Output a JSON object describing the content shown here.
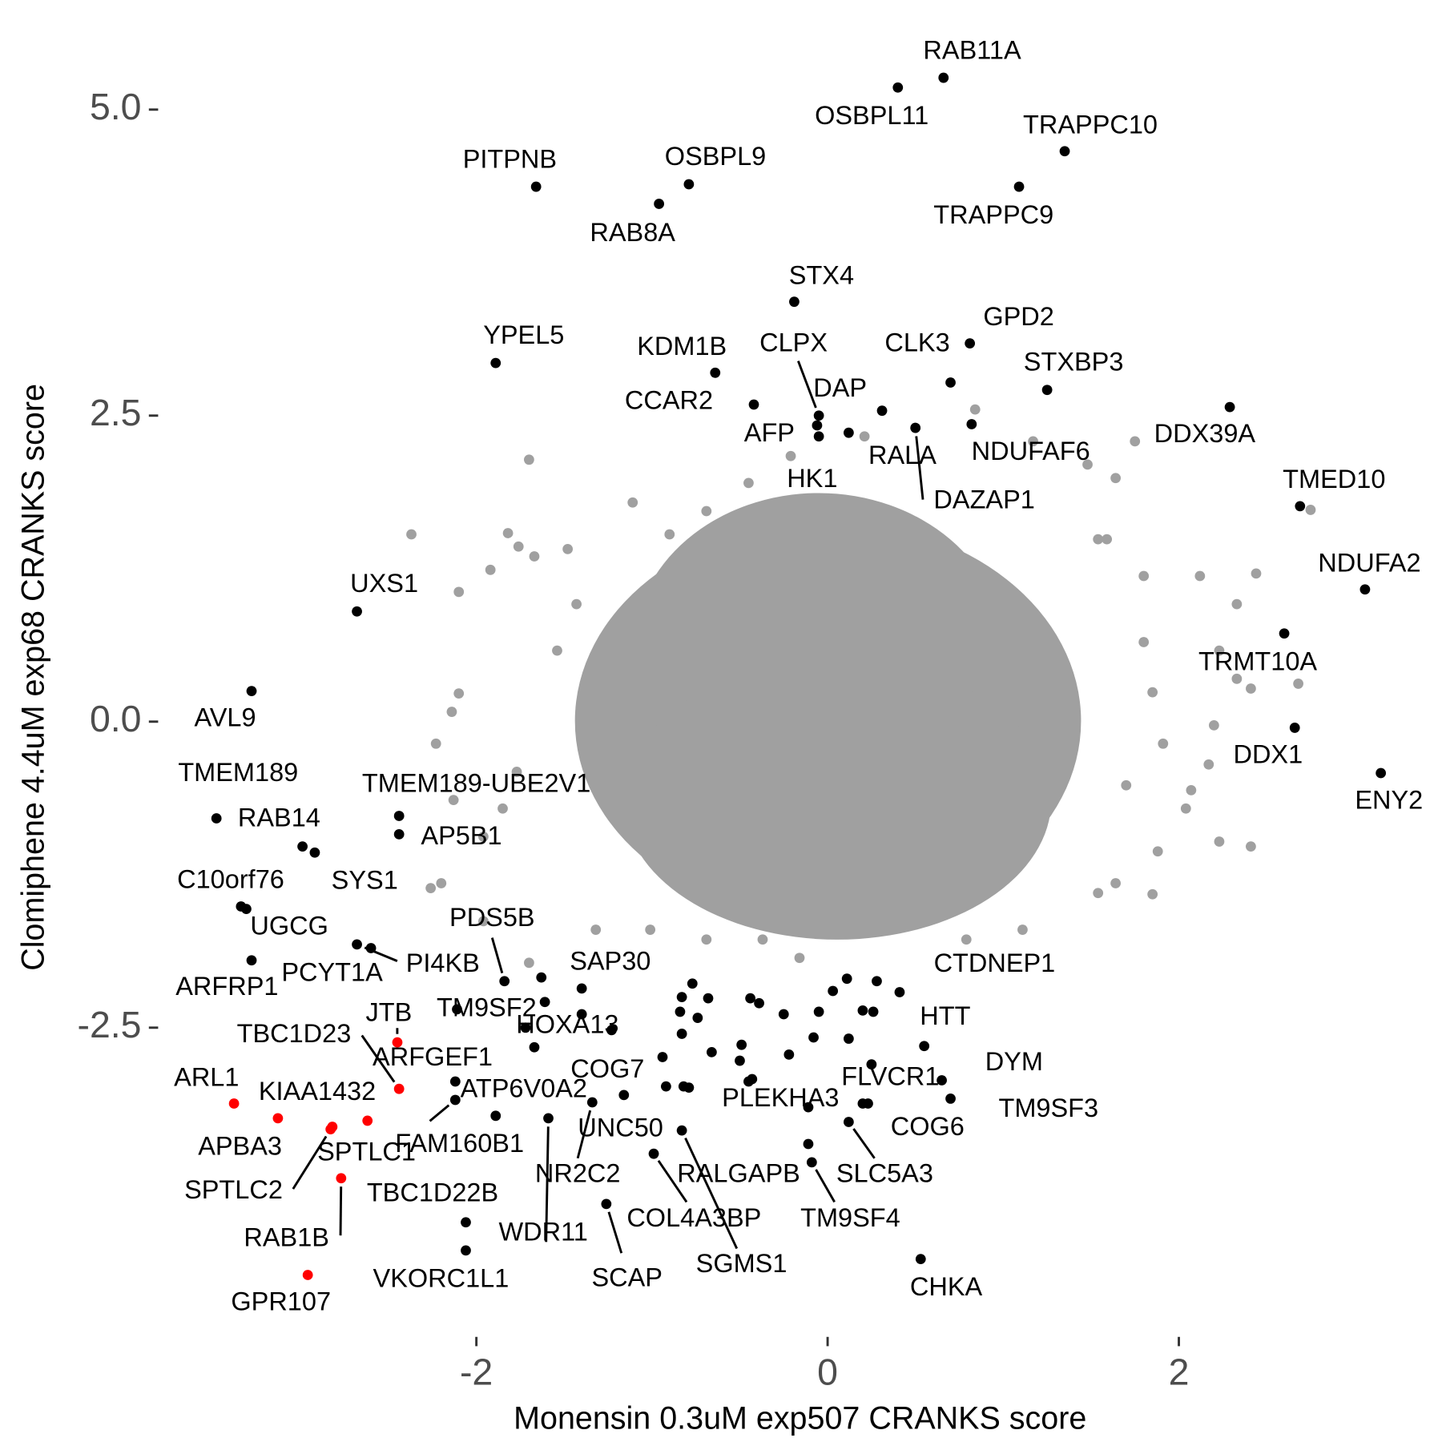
{
  "chart_data": {
    "type": "scatter",
    "xlabel": "Monensin 0.3uM exp507 CRANKS score",
    "ylabel": "Clomiphene 4.4uM exp68 CRANKS score",
    "xlim": [
      -3.6,
      3.35
    ],
    "ylim": [
      -4.95,
      5.5
    ],
    "xticks": [
      -2,
      0,
      2
    ],
    "yticks": [
      {
        "value": 5,
        "label": "5.0"
      },
      {
        "value": 2.5,
        "label": "2.5"
      },
      {
        "value": 0,
        "label": "0.0"
      },
      {
        "value": -2.5,
        "label": "-2.5"
      }
    ],
    "grid": false,
    "series": [
      {
        "color": "#a0a0a0",
        "x": [
          -1.7,
          -2.37,
          -1.82,
          -1.76,
          -1.67,
          -1.48,
          -2.1,
          -1.92,
          -2.1,
          -2.14,
          -2.23,
          -2.13,
          -2.2,
          -2.26,
          -1.96,
          -1.85,
          -1.77,
          -1.54,
          -1.43,
          -1.11,
          -0.9,
          -0.69,
          -0.45,
          -0.21,
          0.21,
          0.84,
          1.17,
          1.48,
          1.64,
          1.75,
          1.59,
          1.8,
          2.12,
          2.33,
          2.44,
          2.75,
          2.68,
          2.41,
          2.33,
          2.23,
          2.2,
          2.17,
          2.07,
          2.04,
          2.23,
          2.41,
          1.88,
          1.85,
          1.64,
          1.54,
          1.11,
          0.79,
          0.26,
          -0.16,
          -0.37,
          -0.69,
          -1.01,
          -1.32,
          -1.7,
          -1.96,
          1.85,
          1.91,
          1.7,
          1.8,
          1.54
        ],
        "values": [
          2.14,
          1.53,
          1.54,
          1.43,
          1.35,
          1.41,
          1.06,
          1.24,
          0.23,
          0.08,
          -0.18,
          -0.64,
          -1.32,
          -1.36,
          -0.94,
          -0.71,
          -0.41,
          0.58,
          0.96,
          1.79,
          1.53,
          1.72,
          1.95,
          2.17,
          2.33,
          2.55,
          2.29,
          2.1,
          1.99,
          2.29,
          1.49,
          1.19,
          1.19,
          0.96,
          1.21,
          1.73,
          0.31,
          0.27,
          0.35,
          0.58,
          -0.03,
          -0.35,
          -0.56,
          -0.71,
          -0.98,
          -1.02,
          -1.06,
          -1.41,
          -1.32,
          -1.4,
          -1.7,
          -1.78,
          -1.7,
          -1.93,
          -1.78,
          -1.78,
          -1.7,
          -1.7,
          -1.97,
          -1.63,
          0.24,
          -0.18,
          -0.52,
          0.65,
          1.49
        ]
      },
      {
        "color": "#000000",
        "x": [
          0.66,
          0.4,
          1.35,
          1.09,
          -1.66,
          -0.79,
          -0.96,
          -0.19,
          -1.89,
          0.81,
          -0.64,
          0.7,
          -0.05,
          1.25,
          0.31,
          -0.06,
          -0.05,
          0.12,
          0.5,
          0.82,
          -0.42,
          2.29,
          2.69,
          3.06,
          -2.68,
          2.6,
          -3.28,
          2.66,
          3.15,
          -3.48,
          -2.44,
          -2.99,
          -2.44,
          -2.92,
          -3.34,
          -3.31,
          -3.28,
          -2.6,
          -2.68,
          -2.12,
          -1.84,
          -1.4,
          -2.11,
          -1.72,
          -1.16,
          -2.12,
          -1.89,
          -0.92,
          -1.34,
          -1.59,
          -0.99,
          -0.79,
          -0.83,
          -1.26,
          -2.06,
          -2.06,
          -0.45,
          0.23,
          0.41,
          0.55,
          0.65,
          0.7,
          0.12,
          -0.11,
          -0.09,
          0.53
        ],
        "values": [
          5.26,
          5.18,
          4.66,
          4.37,
          4.37,
          4.39,
          4.23,
          3.43,
          2.93,
          3.09,
          2.85,
          2.77,
          2.5,
          2.71,
          2.54,
          2.42,
          2.33,
          2.36,
          2.4,
          2.43,
          2.59,
          2.57,
          1.76,
          1.08,
          0.9,
          0.72,
          0.25,
          -0.05,
          -0.42,
          -0.79,
          -0.77,
          -1.02,
          -0.92,
          -1.07,
          -1.51,
          -1.53,
          -1.95,
          -1.85,
          -1.82,
          -2.94,
          -2.12,
          -2.18,
          -2.35,
          -2.5,
          -3.05,
          -3.09,
          -3.22,
          -2.98,
          -3.11,
          -3.24,
          -3.53,
          -2.99,
          -3.34,
          -3.94,
          -4.09,
          -4.32,
          -2.94,
          -3.12,
          -2.21,
          -2.65,
          -2.93,
          -3.08,
          -3.27,
          -3.45,
          -3.6,
          -4.39
        ],
        "labels": [
          "RAB11A",
          "OSBPL11",
          "TRAPPC10",
          "TRAPPC9",
          "PITPNB",
          "OSBPL9",
          "RAB8A",
          "STX4",
          "YPEL5",
          "GPD2",
          "KDM1B",
          "CLK3",
          "CLPX",
          "STXBP3",
          "DAP",
          "AFP",
          "HK1",
          "RALA",
          "DAZAP1",
          "NDUFAF6",
          "CCAR2",
          "DDX39A",
          "TMED10",
          "NDUFA2",
          "UXS1",
          "TRMT10A",
          "AVL9",
          "DDX1",
          "ENY2",
          "TMEM189",
          "TMEM189-UBE2V1",
          "RAB14",
          "AP5B1",
          "SYS1",
          "C10orf76",
          "UGCG",
          "ARFRP1",
          "PCYT1A",
          "PI4KB",
          "ARFGEF1",
          "PDS5B",
          "SAP30",
          "TM9SF2",
          "HOXA13",
          "COG7",
          "FAM160B1",
          "ATP6V0A2",
          "UNC50",
          "NR2C2",
          "WDR11",
          "COL4A3BP",
          "RALGAPB",
          "SGMS1",
          "SCAP",
          "TBC1D22B",
          "VKORC1L1",
          "PLEKHA3",
          "FLVCR1",
          "CTDNEP1",
          "HTT",
          "DYM",
          "TM9SF3",
          "COG6",
          "SLC5A3",
          "TM9SF4",
          "CHKA"
        ]
      },
      {
        "color": "#ff0000",
        "x": [
          -2.45,
          -2.44,
          -3.38,
          -3.13,
          -2.62,
          -2.82,
          -2.83,
          -2.77,
          -2.96
        ],
        "values": [
          -2.62,
          -3.0,
          -3.12,
          -3.24,
          -3.26,
          -3.31,
          -3.33,
          -3.73,
          -4.52
        ],
        "labels": [
          "JTB",
          "TBC1D23",
          "ARL1",
          "APBA3",
          "KIAA1432",
          "SPTLC1",
          "SPTLC2",
          "RAB1B",
          "GPR107"
        ]
      },
      {
        "color": "#000000",
        "x": [
          -1.63,
          -1.61,
          -1.4,
          -1.23,
          -1.67,
          -0.94,
          -0.82,
          -0.77,
          -0.83,
          -0.68,
          -0.84,
          -0.74,
          -0.83,
          -0.44,
          -0.39,
          -0.25,
          -0.49,
          -0.66,
          -0.5,
          -0.43,
          -0.22,
          -0.08,
          -0.05,
          0.03,
          0.11,
          0.2,
          0.12,
          0.28,
          0.26,
          0.25,
          0.2,
          -0.11
        ],
        "values": [
          -2.09,
          -2.29,
          -2.39,
          -2.52,
          -2.66,
          -2.74,
          -2.98,
          -2.14,
          -2.25,
          -2.26,
          -2.37,
          -2.42,
          -2.55,
          -2.26,
          -2.3,
          -2.39,
          -2.64,
          -2.7,
          -2.77,
          -2.92,
          -2.72,
          -2.58,
          -2.37,
          -2.2,
          -2.1,
          -2.36,
          -2.59,
          -2.12,
          -2.37,
          -2.8,
          -3.12,
          -3.15
        ]
      }
    ]
  }
}
